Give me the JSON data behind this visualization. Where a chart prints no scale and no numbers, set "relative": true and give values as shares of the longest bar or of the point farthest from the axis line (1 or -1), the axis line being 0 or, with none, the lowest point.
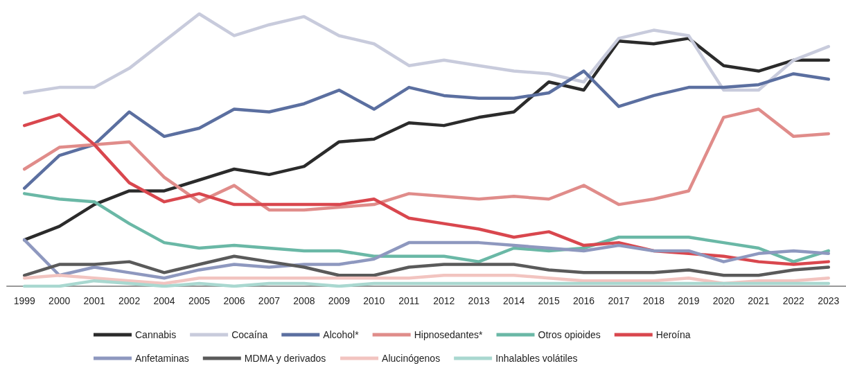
{
  "chart_data": {
    "type": "line",
    "relative": true,
    "legend": "bottom",
    "categories": [
      "1999",
      "2000",
      "2001",
      "2002",
      "2004",
      "2005",
      "2006",
      "2007",
      "2008",
      "2009",
      "2010",
      "2011",
      "2012",
      "2013",
      "2014",
      "2015",
      "2016",
      "2017",
      "2018",
      "2019",
      "2020",
      "2021",
      "2022",
      "2023"
    ],
    "series": [
      {
        "name": "Cannabis",
        "color": "#2b2b2b",
        "values": [
          0.17,
          0.22,
          0.3,
          0.35,
          0.35,
          0.39,
          0.43,
          0.41,
          0.44,
          0.53,
          0.54,
          0.6,
          0.59,
          0.62,
          0.64,
          0.75,
          0.72,
          0.9,
          0.89,
          0.91,
          0.81,
          0.79,
          0.83,
          0.83
        ]
      },
      {
        "name": "Cocaína",
        "color": "#c8cbdc",
        "values": [
          0.71,
          0.73,
          0.73,
          0.8,
          0.9,
          1,
          0.92,
          0.96,
          0.99,
          0.92,
          0.89,
          0.81,
          0.83,
          0.81,
          0.79,
          0.78,
          0.75,
          0.91,
          0.94,
          0.92,
          0.72,
          0.72,
          0.83,
          0.88
        ]
      },
      {
        "name": "Alcohol*",
        "color": "#5b6fa0",
        "values": [
          0.36,
          0.48,
          0.52,
          0.64,
          0.55,
          0.58,
          0.65,
          0.64,
          0.67,
          0.72,
          0.65,
          0.73,
          0.7,
          0.69,
          0.69,
          0.71,
          0.79,
          0.66,
          0.7,
          0.73,
          0.73,
          0.74,
          0.78,
          0.76
        ]
      },
      {
        "name": "Hipnosedantes*",
        "color": "#e08c8a",
        "values": [
          0.43,
          0.51,
          0.52,
          0.53,
          0.4,
          0.31,
          0.37,
          0.28,
          0.28,
          0.29,
          0.3,
          0.34,
          0.33,
          0.32,
          0.33,
          0.32,
          0.37,
          0.3,
          0.32,
          0.35,
          0.62,
          0.65,
          0.55,
          0.56
        ]
      },
      {
        "name": "Otros opioides",
        "color": "#6ab8a6",
        "values": [
          0.34,
          0.32,
          0.31,
          0.23,
          0.16,
          0.14,
          0.15,
          0.14,
          0.13,
          0.13,
          0.11,
          0.11,
          0.11,
          0.09,
          0.14,
          0.13,
          0.14,
          0.18,
          0.18,
          0.18,
          0.16,
          0.14,
          0.09,
          0.13
        ]
      },
      {
        "name": "Heroína",
        "color": "#d9474e",
        "values": [
          0.59,
          0.63,
          0.52,
          0.38,
          0.31,
          0.34,
          0.3,
          0.3,
          0.3,
          0.3,
          0.32,
          0.25,
          0.23,
          0.21,
          0.18,
          0.2,
          0.15,
          0.16,
          0.13,
          0.12,
          0.11,
          0.09,
          0.08,
          0.09
        ]
      },
      {
        "name": "Anfetaminas",
        "color": "#8e98bf",
        "values": [
          0.17,
          0.04,
          0.07,
          0.05,
          0.03,
          0.06,
          0.08,
          0.07,
          0.08,
          0.08,
          0.1,
          0.16,
          0.16,
          0.16,
          0.15,
          0.14,
          0.13,
          0.15,
          0.13,
          0.13,
          0.09,
          0.12,
          0.13,
          0.12
        ]
      },
      {
        "name": "MDMA y derivados",
        "color": "#5a5a5a",
        "values": [
          0.04,
          0.08,
          0.08,
          0.09,
          0.05,
          0.08,
          0.11,
          0.09,
          0.07,
          0.04,
          0.04,
          0.07,
          0.08,
          0.08,
          0.08,
          0.06,
          0.05,
          0.05,
          0.05,
          0.06,
          0.04,
          0.04,
          0.06,
          0.07
        ]
      },
      {
        "name": "Alucinógenos",
        "color": "#f2c4c0",
        "values": [
          0.03,
          0.04,
          0.03,
          0.02,
          0.01,
          0.03,
          0.03,
          0.03,
          0.03,
          0.03,
          0.03,
          0.03,
          0.04,
          0.04,
          0.04,
          0.03,
          0.02,
          0.02,
          0.02,
          0.03,
          0.01,
          0.02,
          0.02,
          0.03
        ]
      },
      {
        "name": "Inhalables volátiles",
        "color": "#a9d8d0",
        "values": [
          0,
          0,
          0.02,
          0.01,
          0,
          0.01,
          0,
          0.01,
          0.01,
          0,
          0.01,
          0.01,
          0.01,
          0.01,
          0.01,
          0.01,
          0.01,
          0.01,
          0.01,
          0.01,
          0.01,
          0.01,
          0.01,
          0.01
        ]
      }
    ]
  }
}
